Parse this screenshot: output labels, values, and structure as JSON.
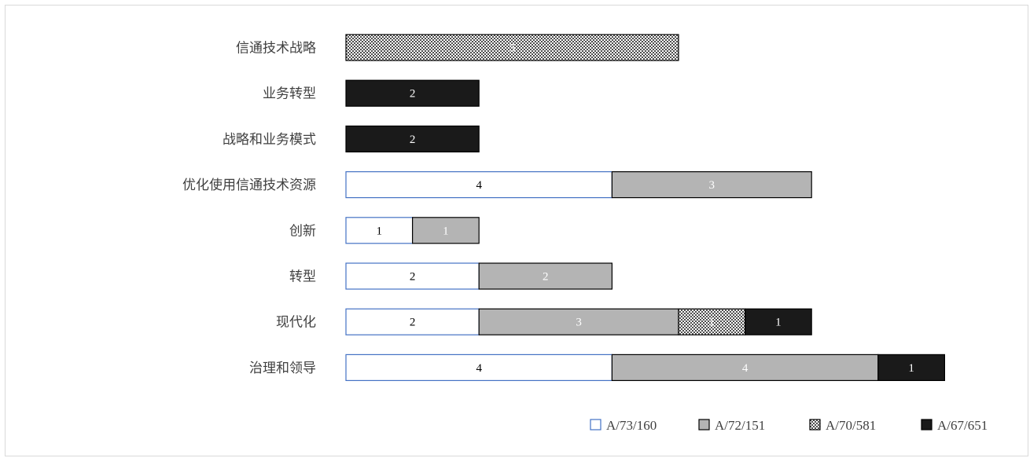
{
  "chart_data": {
    "type": "bar",
    "orientation": "horizontal",
    "stacked": true,
    "categories": [
      "信通技术战略",
      "业务转型",
      "战略和业务模式",
      "优化使用信通技术资源",
      "创新",
      "转型",
      "现代化",
      "治理和领导"
    ],
    "series": [
      {
        "name": "A/73/160",
        "values": [
          0,
          0,
          0,
          4,
          1,
          2,
          2,
          4
        ],
        "fill": "#ffffff",
        "stroke": "#4472c4",
        "label_color": "#000000"
      },
      {
        "name": "A/72/151",
        "values": [
          0,
          0,
          0,
          3,
          1,
          2,
          3,
          4
        ],
        "fill": "#b4b4b4",
        "stroke": "#000000",
        "label_color": "#ffffff"
      },
      {
        "name": "A/70/581",
        "values": [
          5,
          0,
          0,
          0,
          0,
          0,
          1,
          0
        ],
        "fill": "dots",
        "stroke": "#000000",
        "label_color": "#ffffff"
      },
      {
        "name": "A/67/651",
        "values": [
          0,
          2,
          2,
          0,
          0,
          0,
          1,
          1
        ],
        "fill": "#1a1a1a",
        "stroke": "#000000",
        "label_color": "#ffffff"
      }
    ],
    "xlim": [
      0,
      9
    ],
    "grid": false,
    "legend": "bottom-right"
  }
}
